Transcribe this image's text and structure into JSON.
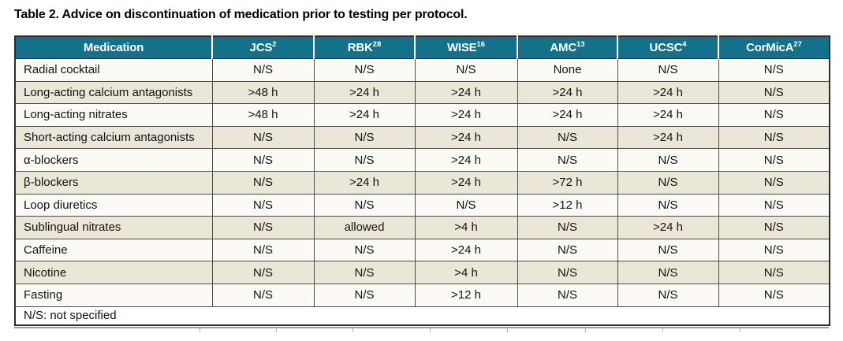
{
  "title": "Table 2. Advice on discontinuation of medication prior to testing per protocol.",
  "colors": {
    "header_bg": "#14718c",
    "row_bg": "#fbfaf4",
    "row_alt_bg": "#eae7d8",
    "border_outer": "#2d2d2d",
    "border_inner": "#4c4c4c",
    "header_text": "#ffffff",
    "body_text": "#121212"
  },
  "table": {
    "columns": [
      {
        "label": "Medication",
        "sup": ""
      },
      {
        "label": "JCS",
        "sup": "2"
      },
      {
        "label": "RBK",
        "sup": "28"
      },
      {
        "label": "WISE",
        "sup": "16"
      },
      {
        "label": "AMC",
        "sup": "13"
      },
      {
        "label": "UCSC",
        "sup": "4"
      },
      {
        "label": "CorMicA",
        "sup": "27"
      }
    ],
    "rows": [
      {
        "medication": "Radial cocktail",
        "values": [
          "N/S",
          "N/S",
          "N/S",
          "None",
          "N/S",
          "N/S"
        ]
      },
      {
        "medication": "Long-acting calcium antagonists",
        "values": [
          ">48 h",
          ">24 h",
          ">24 h",
          ">24 h",
          ">24 h",
          "N/S"
        ]
      },
      {
        "medication": "Long-acting nitrates",
        "values": [
          ">48 h",
          ">24 h",
          ">24 h",
          ">24 h",
          ">24 h",
          "N/S"
        ]
      },
      {
        "medication": "Short-acting calcium antagonists",
        "values": [
          "N/S",
          "N/S",
          ">24 h",
          "N/S",
          ">24 h",
          "N/S"
        ]
      },
      {
        "medication": "α-blockers",
        "values": [
          "N/S",
          "N/S",
          ">24 h",
          "N/S",
          "N/S",
          "N/S"
        ]
      },
      {
        "medication": "β-blockers",
        "values": [
          "N/S",
          ">24 h",
          ">24 h",
          ">72 h",
          "N/S",
          "N/S"
        ]
      },
      {
        "medication": "Loop diuretics",
        "values": [
          "N/S",
          "N/S",
          "N/S",
          ">12 h",
          "N/S",
          "N/S"
        ]
      },
      {
        "medication": "Sublingual nitrates",
        "values": [
          "N/S",
          "allowed",
          ">4 h",
          "N/S",
          ">24 h",
          "N/S"
        ]
      },
      {
        "medication": "Caffeine",
        "values": [
          "N/S",
          "N/S",
          ">24 h",
          "N/S",
          "N/S",
          "N/S"
        ]
      },
      {
        "medication": "Nicotine",
        "values": [
          "N/S",
          "N/S",
          ">4 h",
          "N/S",
          "N/S",
          "N/S"
        ]
      },
      {
        "medication": "Fasting",
        "values": [
          "N/S",
          "N/S",
          ">12 h",
          "N/S",
          "N/S",
          "N/S"
        ]
      }
    ],
    "footnote": "N/S: not specified"
  }
}
